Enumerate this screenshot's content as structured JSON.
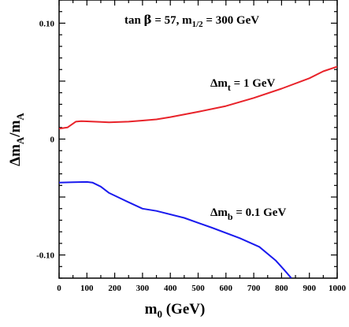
{
  "chart_data": {
    "type": "line",
    "title": "",
    "annotation": {
      "tanb_prefix": "tan ",
      "tanb_symbol": "β",
      "tanb_value": " = 57,  m",
      "m_sub": "1/2",
      "m_value": " = 300 GeV"
    },
    "xlabel": {
      "main": "m",
      "sub": "0",
      "unit": "  (GeV)"
    },
    "ylabel": {
      "delta": "Δm",
      "sub1": "A",
      "slash": "/m",
      "sub2": "A"
    },
    "xlim": [
      0,
      1000
    ],
    "ylim": [
      -0.12,
      0.12
    ],
    "x_ticks": [
      "0",
      "100",
      "200",
      "300",
      "400",
      "500",
      "600",
      "700",
      "800",
      "900",
      "1000"
    ],
    "y_ticks": [
      {
        "value": 0.1,
        "label": "0.10"
      },
      {
        "value": 0,
        "label": "0"
      },
      {
        "value": -0.1,
        "label": "-0.10"
      }
    ],
    "grid": false,
    "series": [
      {
        "label_delta": "Δm",
        "label_sub": "t",
        "label_value": " = 1 GeV",
        "color": "#e8232a",
        "x": [
          0,
          30,
          60,
          80,
          100,
          150,
          180,
          250,
          300,
          350,
          400,
          500,
          600,
          700,
          800,
          900,
          950,
          1000
        ],
        "y": [
          0.009,
          0.01,
          0.015,
          0.0155,
          0.0153,
          0.0148,
          0.0145,
          0.015,
          0.016,
          0.017,
          0.019,
          0.0235,
          0.0285,
          0.0355,
          0.0435,
          0.0525,
          0.0585,
          0.0625
        ]
      },
      {
        "label_delta": "Δm",
        "label_sub": "b",
        "label_value": " = 0.1 GeV",
        "color": "#1a1aee",
        "x": [
          0,
          50,
          100,
          120,
          150,
          180,
          250,
          300,
          350,
          450,
          550,
          650,
          720,
          780,
          810,
          835
        ],
        "y": [
          -0.0375,
          -0.0372,
          -0.037,
          -0.0375,
          -0.041,
          -0.0465,
          -0.0545,
          -0.06,
          -0.062,
          -0.068,
          -0.0765,
          -0.0855,
          -0.093,
          -0.105,
          -0.113,
          -0.12
        ]
      }
    ]
  }
}
